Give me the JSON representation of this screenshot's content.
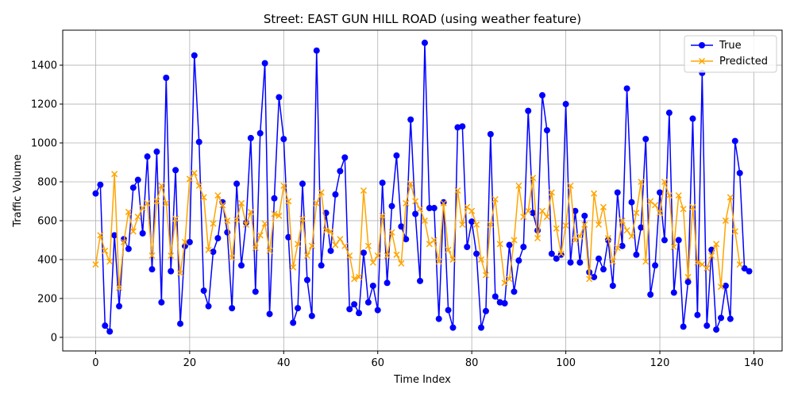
{
  "chart_data": {
    "type": "line",
    "title": "Street: EAST GUN HILL ROAD (using weather feature)",
    "xlabel": "Time Index",
    "ylabel": "Traffic Volume",
    "xlim": [
      -7,
      146
    ],
    "ylim": [
      -70,
      1580
    ],
    "xticks": [
      0,
      20,
      40,
      60,
      80,
      100,
      120,
      140
    ],
    "yticks": [
      0,
      200,
      400,
      600,
      800,
      1000,
      1200,
      1400
    ],
    "grid": true,
    "legend_position": "top-right",
    "series": [
      {
        "name": "True",
        "color": "#0000ff",
        "marker": "circle",
        "values": [
          740,
          785,
          60,
          30,
          525,
          160,
          505,
          455,
          770,
          810,
          535,
          930,
          350,
          955,
          180,
          1335,
          340,
          860,
          70,
          470,
          490,
          1450,
          1005,
          240,
          160,
          440,
          510,
          695,
          540,
          150,
          790,
          370,
          590,
          1025,
          235,
          1050,
          1410,
          120,
          715,
          1235,
          1020,
          515,
          75,
          150,
          790,
          295,
          110,
          1475,
          370,
          640,
          445,
          735,
          855,
          925,
          145,
          170,
          125,
          435,
          180,
          265,
          140,
          795,
          280,
          675,
          935,
          570,
          505,
          1120,
          635,
          290,
          1515,
          665,
          665,
          95,
          695,
          140,
          50,
          1080,
          1085,
          465,
          595,
          430,
          50,
          135,
          1045,
          210,
          180,
          175,
          475,
          235,
          395,
          465,
          1165,
          640,
          550,
          1245,
          1065,
          430,
          405,
          425,
          1200,
          385,
          650,
          385,
          625,
          335,
          310,
          405,
          350,
          500,
          265,
          745,
          470,
          1280,
          695,
          425,
          565,
          1020,
          220,
          370,
          745,
          500,
          1155,
          230,
          500,
          55,
          285,
          1125,
          115,
          1360,
          60,
          450,
          40,
          100,
          265,
          95,
          1010,
          845,
          355,
          340
        ]
      },
      {
        "name": "Predicted",
        "color": "#ffa500",
        "marker": "x",
        "values": [
          375,
          525,
          445,
          390,
          840,
          255,
          490,
          645,
          545,
          620,
          665,
          690,
          420,
          700,
          780,
          690,
          420,
          610,
          330,
          490,
          815,
          845,
          780,
          720,
          450,
          585,
          730,
          680,
          600,
          410,
          605,
          690,
          580,
          645,
          460,
          525,
          585,
          445,
          635,
          625,
          780,
          700,
          360,
          480,
          610,
          420,
          470,
          690,
          745,
          550,
          545,
          475,
          505,
          470,
          420,
          300,
          310,
          755,
          470,
          385,
          420,
          625,
          420,
          540,
          425,
          380,
          690,
          790,
          700,
          660,
          600,
          480,
          500,
          390,
          690,
          450,
          400,
          755,
          580,
          670,
          650,
          580,
          400,
          320,
          580,
          710,
          480,
          280,
          300,
          500,
          780,
          620,
          650,
          820,
          510,
          650,
          620,
          745,
          560,
          430,
          575,
          780,
          500,
          520,
          580,
          300,
          740,
          580,
          670,
          510,
          390,
          460,
          600,
          550,
          520,
          640,
          800,
          390,
          700,
          680,
          640,
          800,
          730,
          465,
          730,
          660,
          310,
          670,
          385,
          375,
          355,
          420,
          480,
          260,
          600,
          720,
          545,
          375
        ]
      }
    ]
  }
}
